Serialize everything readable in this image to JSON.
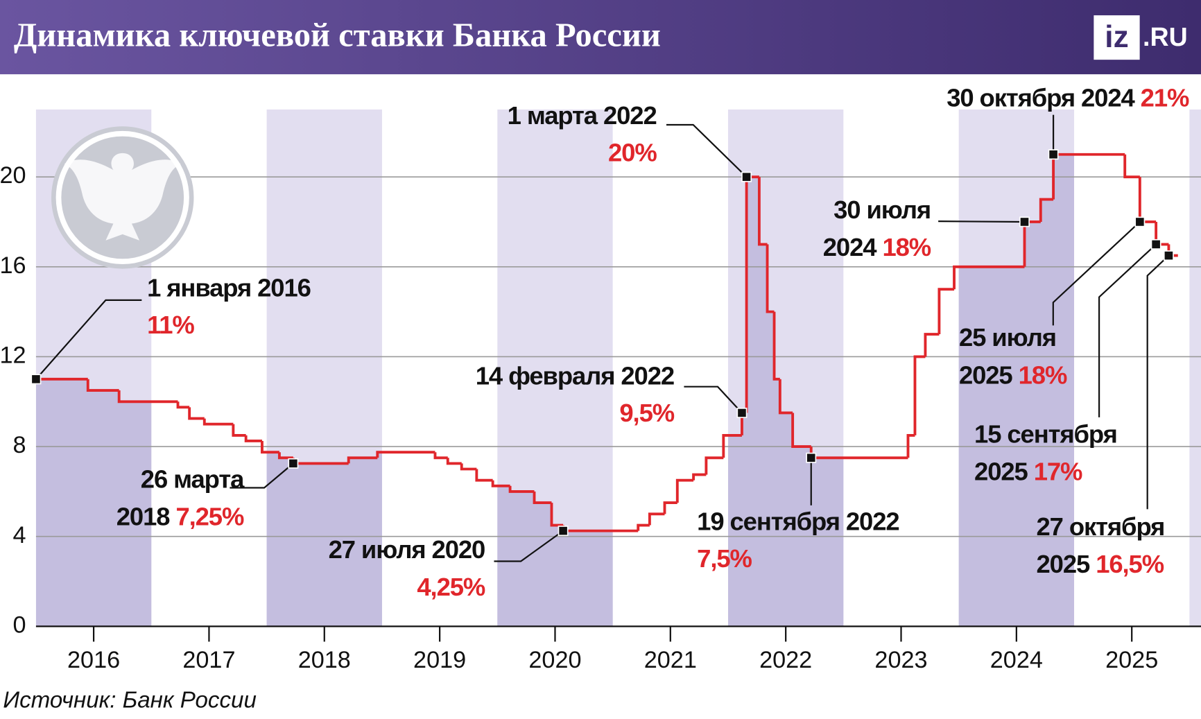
{
  "chart_data": {
    "type": "step",
    "title": "Динамика ключевой ставки Банка России",
    "logo": [
      "iz",
      ".RU"
    ],
    "source": "Источник: Банк России",
    "color": "#e0262b",
    "grid": true,
    "x": [
      2016.0,
      2016.45,
      2016.72,
      2017.23,
      2017.33,
      2017.46,
      2017.71,
      2017.82,
      2017.96,
      2018.11,
      2018.23,
      2018.71,
      2018.96,
      2019.46,
      2019.57,
      2019.69,
      2019.82,
      2019.96,
      2020.11,
      2020.32,
      2020.47,
      2020.57,
      2021.22,
      2021.32,
      2021.45,
      2021.56,
      2021.7,
      2021.81,
      2021.96,
      2022.12,
      2022.16,
      2022.27,
      2022.34,
      2022.4,
      2022.45,
      2022.56,
      2022.72,
      2023.56,
      2023.62,
      2023.71,
      2023.83,
      2023.96,
      2024.57,
      2024.71,
      2024.82,
      2025.44,
      2025.57,
      2025.71,
      2025.82,
      2025.9
    ],
    "values": [
      11,
      10.5,
      10,
      9.75,
      9.25,
      9,
      8.5,
      8.25,
      7.75,
      7.5,
      7.25,
      7.5,
      7.75,
      7.5,
      7.25,
      7,
      6.5,
      6.25,
      6,
      5.5,
      4.5,
      4.25,
      4.5,
      5,
      5.5,
      6.5,
      6.75,
      7.5,
      8.5,
      9.5,
      20,
      17,
      14,
      11,
      9.5,
      8,
      7.5,
      8.5,
      12,
      13,
      15,
      16,
      18,
      19,
      21,
      20,
      18,
      17,
      16.5,
      16.5
    ],
    "xlim": [
      2016,
      2026.1
    ],
    "ylim": [
      0,
      23
    ],
    "yticks": [
      0,
      4,
      8,
      12,
      16,
      20
    ],
    "xticks": [
      {
        "value": 2016.5,
        "label": "2016"
      },
      {
        "value": 2017.5,
        "label": "2017"
      },
      {
        "value": 2018.5,
        "label": "2018"
      },
      {
        "value": 2019.5,
        "label": "2019"
      },
      {
        "value": 2020.5,
        "label": "2020"
      },
      {
        "value": 2021.5,
        "label": "2021"
      },
      {
        "value": 2022.5,
        "label": "2022"
      },
      {
        "value": 2023.5,
        "label": "2023"
      },
      {
        "value": 2024.5,
        "label": "2024"
      },
      {
        "value": 2025.5,
        "label": "2025"
      }
    ],
    "annotations": [
      {
        "lines": [
          "1 января 2016"
        ],
        "value": 11,
        "value_label": "11%",
        "x": 2016.0
      },
      {
        "lines": [
          "1 марта 2022"
        ],
        "value": 20,
        "value_label": "20%",
        "x": 2022.16
      },
      {
        "lines": [
          "30 июля",
          "2024"
        ],
        "value": 18,
        "value_label": "18%",
        "x": 2024.57
      },
      {
        "lines": [
          "30 октября 2024"
        ],
        "value": 21,
        "value_label": "21%",
        "x": 2024.82
      },
      {
        "lines": [
          "14 февраля 2022"
        ],
        "value": 9.5,
        "value_label": "9,5%",
        "x": 2022.12
      },
      {
        "lines": [
          "26 марта",
          "2018"
        ],
        "value": 7.25,
        "value_label": "7,25%",
        "x": 2018.23
      },
      {
        "lines": [
          "27 июля 2020"
        ],
        "value": 4.25,
        "value_label": "4,25%",
        "x": 2020.57
      },
      {
        "lines": [
          "19 сентября 2022"
        ],
        "value": 7.5,
        "value_label": "7,5%",
        "x": 2022.72
      },
      {
        "lines": [
          "25 июля",
          "2025"
        ],
        "value": 18,
        "value_label": "18%",
        "x": 2025.57
      },
      {
        "lines": [
          "15 сентября",
          "2025"
        ],
        "value": 17,
        "value_label": "17%",
        "x": 2025.71
      },
      {
        "lines": [
          "27 октября",
          "2025"
        ],
        "value": 16.5,
        "value_label": "16,5%",
        "x": 2025.82
      }
    ]
  }
}
